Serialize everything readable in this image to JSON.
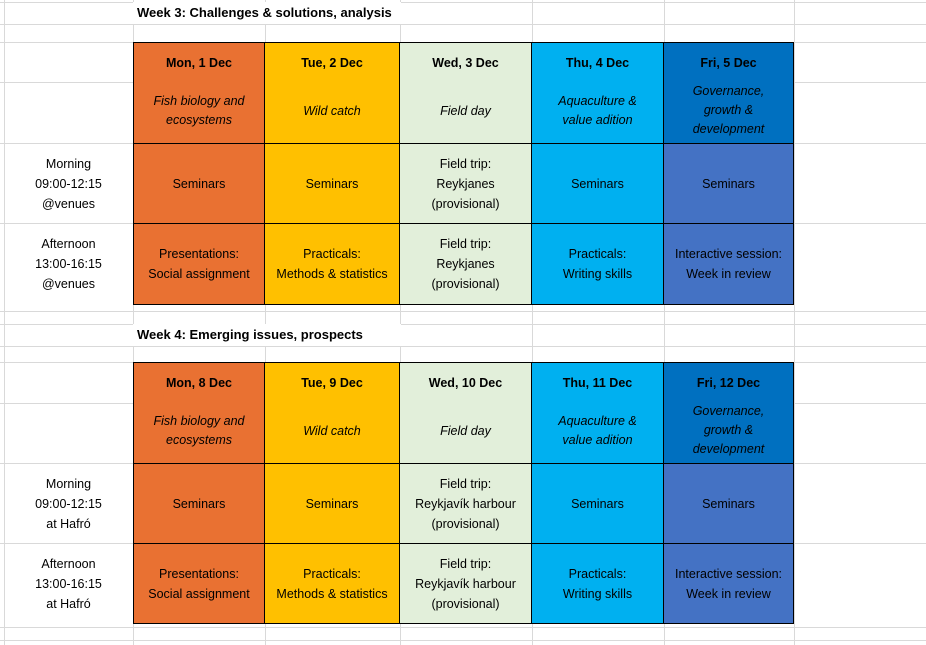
{
  "colors": {
    "mon": "#E97132",
    "tue": "#FFC000",
    "wed": "#E2EFDA",
    "thu": "#00B0F0",
    "fri_header": "#0070C0",
    "fri_body": "#4472C4",
    "gridline": "#D9D9D9",
    "cell_border": "#000000",
    "text": "#000000"
  },
  "weeks": [
    {
      "title": "Week 3: Challenges & solutions, analysis",
      "days": [
        {
          "date": "Mon, 1 Dec",
          "theme": "Fish biology and\necosystems"
        },
        {
          "date": "Tue, 2 Dec",
          "theme": "Wild catch"
        },
        {
          "date": "Wed, 3 Dec",
          "theme": "Field day"
        },
        {
          "date": "Thu, 4 Dec",
          "theme": "Aquaculture &\nvalue adition"
        },
        {
          "date": "Fri, 5 Dec",
          "theme": "Governance,\ngrowth &\ndevelopment"
        }
      ],
      "rows": [
        {
          "label": "Morning\n09:00-12:15\n@venues",
          "cells": [
            "Seminars",
            "Seminars",
            "Field trip:\nReykjanes\n(provisional)",
            "Seminars",
            "Seminars"
          ]
        },
        {
          "label": "Afternoon\n13:00-16:15\n@venues",
          "cells": [
            "Presentations:\nSocial assignment",
            "Practicals:\nMethods & statistics",
            "Field trip:\nReykjanes\n(provisional)",
            "Practicals:\nWriting skills",
            "Interactive session:\nWeek in review"
          ]
        }
      ]
    },
    {
      "title": "Week 4: Emerging issues, prospects",
      "days": [
        {
          "date": "Mon, 8 Dec",
          "theme": "Fish biology and\necosystems"
        },
        {
          "date": "Tue, 9 Dec",
          "theme": "Wild catch"
        },
        {
          "date": "Wed, 10 Dec",
          "theme": "Field day"
        },
        {
          "date": "Thu, 11 Dec",
          "theme": "Aquaculture &\nvalue adition"
        },
        {
          "date": "Fri, 12 Dec",
          "theme": "Governance,\ngrowth &\ndevelopment"
        }
      ],
      "rows": [
        {
          "label": "Morning\n09:00-12:15\nat Hafró",
          "cells": [
            "Seminars",
            "Seminars",
            "Field trip:\nReykjavík harbour\n(provisional)",
            "Seminars",
            "Seminars"
          ]
        },
        {
          "label": "Afternoon\n13:00-16:15\nat Hafró",
          "cells": [
            "Presentations:\nSocial assignment",
            "Practicals:\nMethods & statistics",
            "Field trip:\nReykjavík harbour\n(provisional)",
            "Practicals:\nWriting skills",
            "Interactive session:\nWeek in review"
          ]
        }
      ]
    }
  ]
}
